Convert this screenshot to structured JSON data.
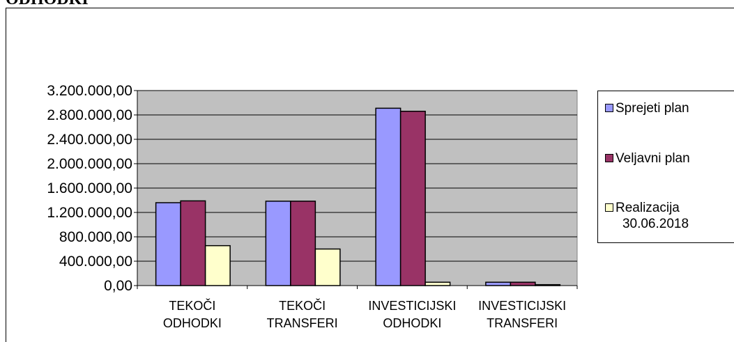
{
  "title": "ODHODKI",
  "chart_data": {
    "type": "bar",
    "title": "ODHODKI",
    "categories": [
      [
        "TEKOČI",
        "ODHODKI"
      ],
      [
        "TEKOČI",
        "TRANSFERI"
      ],
      [
        "INVESTICIJSKI",
        "ODHODKI"
      ],
      [
        "INVESTICIJSKI",
        "TRANSFERI"
      ]
    ],
    "series": [
      {
        "name": "Sprejeti plan",
        "color": "#9999ff",
        "values": [
          1360000,
          1385000,
          2910000,
          55000
        ]
      },
      {
        "name": "Veljavni plan",
        "color": "#993366",
        "values": [
          1390000,
          1385000,
          2860000,
          55000
        ]
      },
      {
        "name": "Realizacija 30.06.2018",
        "color": "#ffffcc",
        "values": [
          655000,
          600000,
          55000,
          15000
        ]
      }
    ],
    "ylim": [
      0,
      3200000
    ],
    "yticks": [
      "0,00",
      "400.000,00",
      "800.000,00",
      "1.200.000,00",
      "1.600.000,00",
      "2.000.000,00",
      "2.400.000,00",
      "2.800.000,00",
      "3.200.000,00"
    ],
    "grid": true,
    "plot_background": "#c0c0c0",
    "legend_position": "right"
  },
  "legend": {
    "items": [
      {
        "label": "Sprejeti plan",
        "color": "#9999ff"
      },
      {
        "label": "Veljavni plan",
        "color": "#993366"
      },
      {
        "label_line1": "Realizacija",
        "label_line2": "30.06.2018",
        "color": "#ffffcc"
      }
    ]
  }
}
